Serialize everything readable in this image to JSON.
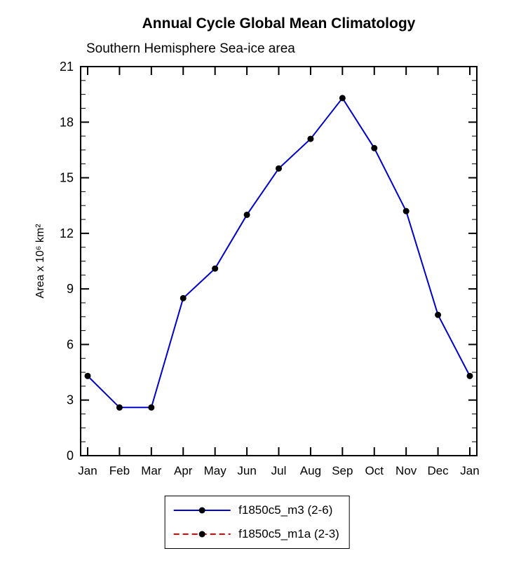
{
  "page": {
    "title": "Annual Cycle Global Mean Climatology",
    "subtitle": "Southern Hemisphere Sea-ice area"
  },
  "chart_data": {
    "type": "line",
    "title": "Annual Cycle Global Mean Climatology",
    "subtitle": "Southern Hemisphere Sea-ice area",
    "xlabel": "",
    "ylabel": "Area x 10⁶ km²",
    "categories": [
      "Jan",
      "Feb",
      "Mar",
      "Apr",
      "May",
      "Jun",
      "Jul",
      "Aug",
      "Sep",
      "Oct",
      "Nov",
      "Dec",
      "Jan"
    ],
    "ylim": [
      0,
      21
    ],
    "ytick_interval": 3,
    "yticks": [
      0,
      3,
      6,
      9,
      12,
      15,
      18,
      21
    ],
    "grid": false,
    "legend_position": "bottom",
    "frame_color": "#000000",
    "series": [
      {
        "name": "f1850c5_m3 (2-6)",
        "color": "#0000cd",
        "line_style": "solid",
        "marker": "filled-circle",
        "marker_color": "#000000",
        "values": [
          4.3,
          2.6,
          2.6,
          8.5,
          10.1,
          13.0,
          15.5,
          17.1,
          19.3,
          16.6,
          13.2,
          7.6,
          4.3
        ]
      },
      {
        "name": "f1850c5_m1a (2-3)",
        "color": "#e00000",
        "line_style": "dashed",
        "marker": "filled-circle",
        "marker_color": "#000000",
        "values": []
      }
    ]
  }
}
